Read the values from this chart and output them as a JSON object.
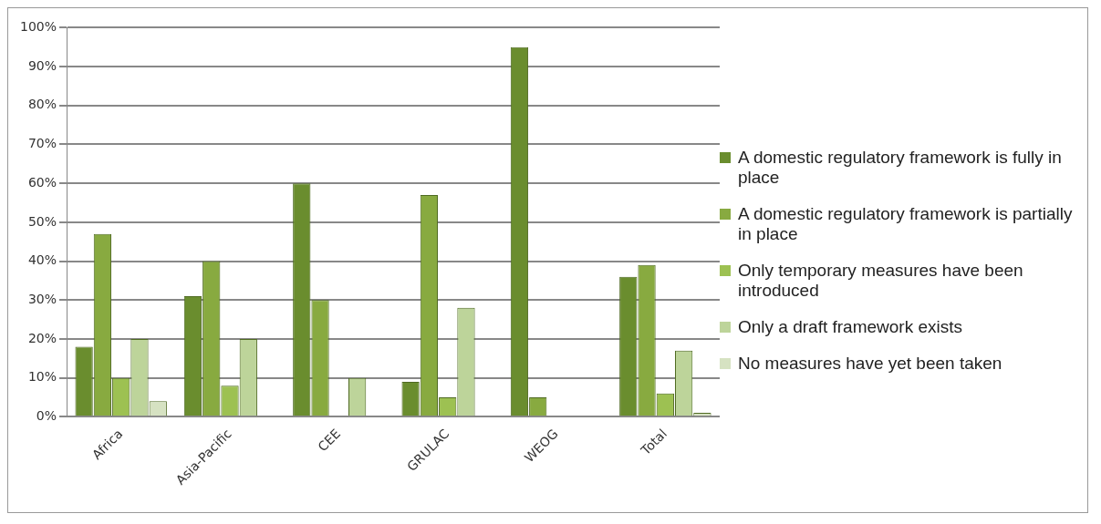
{
  "chart_data": {
    "type": "bar",
    "categories": [
      "Africa",
      "Asia-Pacific",
      "CEE",
      "GRULAC",
      "WEOG",
      "Total"
    ],
    "series": [
      {
        "name": "A domestic regulatory framework is fully in place",
        "color": "#6a8d2e",
        "values": [
          18,
          31,
          60,
          9,
          95,
          36
        ]
      },
      {
        "name": "A domestic regulatory framework is partially in place",
        "color": "#88aa40",
        "values": [
          47,
          40,
          30,
          57,
          5,
          39
        ]
      },
      {
        "name": "Only temporary measures have been introduced",
        "color": "#9dc152",
        "values": [
          10,
          8,
          0,
          5,
          0,
          6
        ]
      },
      {
        "name": "Only a draft framework exists",
        "color": "#bdd49a",
        "values": [
          20,
          20,
          10,
          28,
          0,
          17
        ]
      },
      {
        "name": "No measures have yet been taken",
        "color": "#d6e2c2",
        "values": [
          4,
          0,
          0,
          0,
          0,
          1
        ]
      }
    ],
    "ylim": [
      0,
      100
    ],
    "yticks": [
      {
        "value": 0,
        "label": "0%"
      },
      {
        "value": 10,
        "label": "10%"
      },
      {
        "value": 20,
        "label": "20%"
      },
      {
        "value": 30,
        "label": "30%"
      },
      {
        "value": 40,
        "label": "40%"
      },
      {
        "value": 50,
        "label": "50%"
      },
      {
        "value": 60,
        "label": "60%"
      },
      {
        "value": 70,
        "label": "70%"
      },
      {
        "value": 80,
        "label": "80%"
      },
      {
        "value": 90,
        "label": "90%"
      },
      {
        "value": 100,
        "label": "100%"
      }
    ],
    "grid": "y",
    "legend": "right"
  }
}
